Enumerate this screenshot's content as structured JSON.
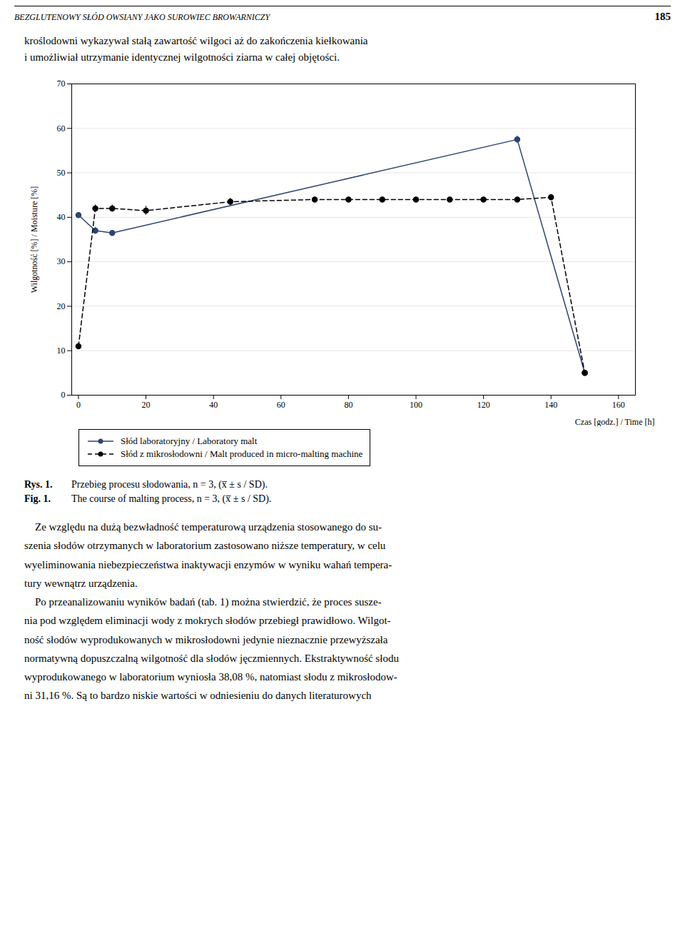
{
  "header": "BEZGLUTENOWY SŁÓD OWSIANY JAKO SUROWIEC BROWARNICZY",
  "page_number": "185",
  "intro": [
    "kroślodowni wykazywał stałą zawartość wilgoci aż do zakończenia kiełkowania",
    "i umożliwiał utrzymanie identycznej wilgotności ziarna w całej objętości."
  ],
  "chart_data": {
    "type": "line",
    "xlabel": "Czas [godz.] / Time [h]",
    "ylabel": "Wilgotność [%] / Moisture [%]",
    "xlim": [
      -2,
      165
    ],
    "ylim": [
      0,
      70
    ],
    "xticks": [
      0,
      20,
      40,
      60,
      80,
      100,
      120,
      140,
      160
    ],
    "yticks": [
      0,
      10,
      20,
      30,
      40,
      50,
      60,
      70
    ],
    "grid": "y",
    "legend": "lower left",
    "series": [
      {
        "name": "Słód laboratoryjny / Laboratory malt",
        "color": "#2b4570",
        "marker": "circle",
        "line_style": "solid",
        "x": [
          0,
          5,
          10,
          130,
          150
        ],
        "values": [
          40.5,
          37.0,
          36.5,
          57.5,
          5.0
        ],
        "yerr": [
          0.5,
          0.8,
          0.5,
          0.8,
          0.5
        ]
      },
      {
        "name": "Słód z mikrosłodowni / Malt produced in micro-malting machine",
        "color": "#000000",
        "marker": "circle",
        "line_style": "dashed",
        "x": [
          0,
          5,
          10,
          20,
          45,
          70,
          80,
          90,
          100,
          110,
          120,
          130,
          140,
          150
        ],
        "values": [
          11.0,
          42.0,
          42.0,
          41.5,
          43.5,
          44.0,
          44.0,
          44.0,
          44.0,
          44.0,
          44.0,
          44.0,
          44.5,
          5.0
        ],
        "yerr": [
          0.0,
          0.8,
          0.8,
          1.0,
          0.8,
          0.5,
          0.0,
          0.0,
          0.0,
          0.0,
          0.0,
          0.0,
          0.5,
          0.5
        ]
      }
    ]
  },
  "caption": [
    {
      "label": "Rys. 1.",
      "text": "Przebieg procesu słodowania, n = 3, (x̅ ± s / SD)."
    },
    {
      "label": "Fig. 1.",
      "text": "The course of malting process, n = 3, (x̅ ± s / SD)."
    }
  ],
  "body": [
    "    Ze względu na dużą bezwładność temperaturową urządzenia stosowanego do su-",
    "szenia słodów otrzymanych w laboratorium zastosowano niższe temperatury, w celu",
    "wyeliminowania niebezpieczeństwa inaktywacji enzymów w wyniku wahań tempera-",
    "tury wewnątrz urządzenia.",
    "    Po przeanalizowaniu wyników badań (tab. 1) można stwierdzić, że proces susze-",
    "nia pod względem eliminacji wody z mokrych słodów przebiegł prawidłowo. Wilgot-",
    "ność słodów wyprodukowanych w mikrosłodowni jedynie nieznacznie przewyższała",
    "normatywną dopuszczalną wilgotność dla słodów jęczmiennych. Ekstraktywność słodu",
    "wyprodukowanego w laboratorium wyniosła 38,08 %, natomiast słodu z mikrosłodow-",
    "ni 31,16 %. Są to bardzo niskie wartości w odniesieniu do danych literaturowych"
  ]
}
